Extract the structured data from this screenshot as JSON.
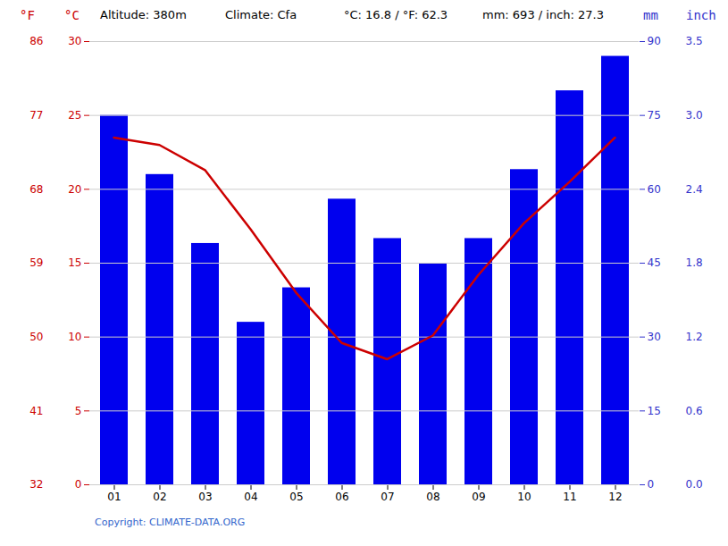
{
  "chart_data": {
    "type": "bar",
    "categories": [
      "01",
      "02",
      "03",
      "04",
      "05",
      "06",
      "07",
      "08",
      "09",
      "10",
      "11",
      "12"
    ],
    "series": [
      {
        "type": "bar",
        "axis": "y2",
        "color": "#0000ee",
        "values": [
          75,
          63,
          49,
          33,
          40,
          58,
          50,
          45,
          50,
          64,
          80,
          87
        ]
      },
      {
        "type": "line",
        "color": "#cc0000",
        "values": [
          23.5,
          23.0,
          21.3,
          17.3,
          13.0,
          9.6,
          8.5,
          10.1,
          14.2,
          17.7,
          20.5,
          23.5
        ]
      }
    ],
    "ylabel": "°C",
    "ylim": [
      0,
      30
    ],
    "yticks": [
      0,
      5,
      10,
      15,
      20,
      25,
      30
    ],
    "ylabel_f": "°F",
    "yticks_f": [
      {
        "value": 0,
        "label": "32"
      },
      {
        "value": 5,
        "label": "41"
      },
      {
        "value": 10,
        "label": "50"
      },
      {
        "value": 15,
        "label": "59"
      },
      {
        "value": 20,
        "label": "68"
      },
      {
        "value": 25,
        "label": "77"
      },
      {
        "value": 30,
        "label": "86"
      }
    ],
    "y_tick_color": "#cc0000",
    "y2label": "mm",
    "y2lim": [
      0,
      90
    ],
    "y2ticks": [
      0,
      15,
      30,
      45,
      60,
      75,
      90
    ],
    "y2label_inch": "inch",
    "y2ticks_inch": [
      {
        "value": 0,
        "label": "0.0"
      },
      {
        "value": 15,
        "label": "0.6"
      },
      {
        "value": 30,
        "label": "1.2"
      },
      {
        "value": 45,
        "label": "1.8"
      },
      {
        "value": 60,
        "label": "2.4"
      },
      {
        "value": 75,
        "label": "3.0"
      },
      {
        "value": 90,
        "label": "3.5"
      }
    ],
    "y2_tick_color": "#3333cc",
    "annotations": [
      "Altitude: 380m",
      "Climate: Cfa",
      "°C: 16.8 / °F: 62.3",
      "mm: 693 / inch: 27.3"
    ],
    "caption": "Copyright: CLIMATE-DATA.ORG",
    "caption_color": "#3366cc",
    "grid": true,
    "grid_color": "#cccccc"
  }
}
